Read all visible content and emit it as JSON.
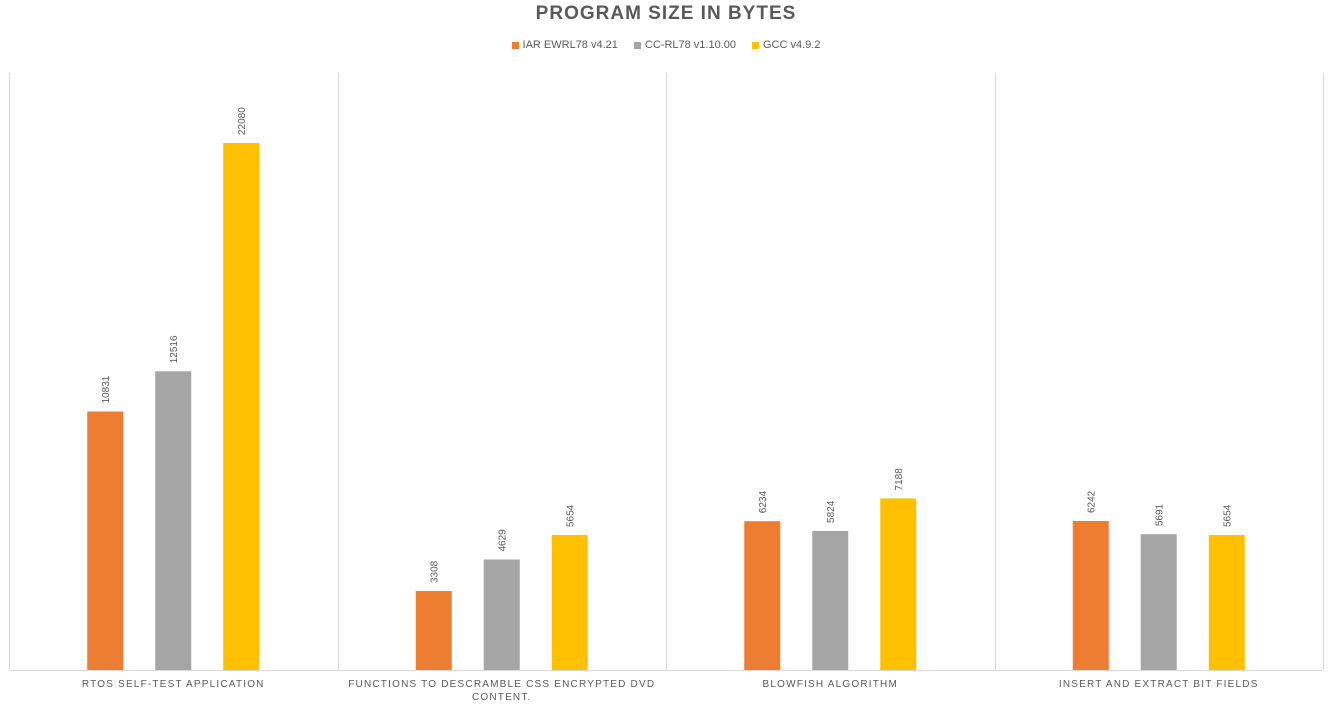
{
  "chart_data": {
    "type": "bar",
    "title": "PROGRAM SIZE IN BYTES",
    "categories": [
      "RTOS SELF-TEST APPLICATION",
      "FUNCTIONS TO DESCRAMBLE CSS ENCRYPTED DVD CONTENT.",
      "BLOWFISH ALGORITHM",
      "INSERT AND EXTRACT BIT FIELDS"
    ],
    "series": [
      {
        "name": "IAR EWRL78 v4.21",
        "color": "#ED7D31",
        "values": [
          10831,
          3308,
          6234,
          6242
        ]
      },
      {
        "name": "CC-RL78 v1.10.00",
        "color": "#A5A5A5",
        "values": [
          12516,
          4629,
          5824,
          5691
        ]
      },
      {
        "name": "GCC v4.9.2",
        "color": "#FFC000",
        "values": [
          22080,
          5654,
          7188,
          5654
        ]
      }
    ],
    "ylim": [
      0,
      25000
    ],
    "data_labels": true,
    "gridlines": "vertical category separators",
    "legend_position": "top"
  }
}
